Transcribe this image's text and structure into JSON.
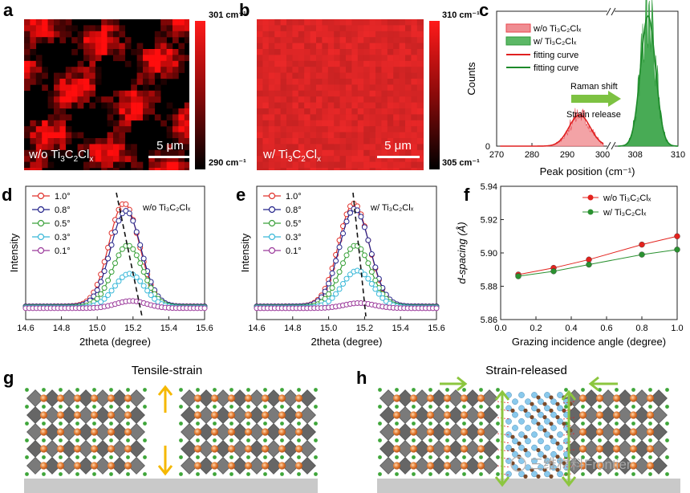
{
  "panels": {
    "a": {
      "letter": "a",
      "label_main": "w/o Ti",
      "s1": "3",
      "c": "C",
      "s2": "2",
      "cl": "Cl",
      "s3": "x",
      "scalebar": "5 μm",
      "colorbar_max": "301 cm⁻¹",
      "colorbar_min": "290 cm⁻¹"
    },
    "b": {
      "letter": "b",
      "label_main": "w/ Ti",
      "s1": "3",
      "c": "C",
      "s2": "2",
      "cl": "Cl",
      "s3": "x",
      "scalebar": "5 μm",
      "colorbar_max": "310 cm⁻¹",
      "colorbar_min": "305 cm⁻¹"
    },
    "c": {
      "letter": "c",
      "legend": [
        {
          "text": "w/o Ti₃C₂Clₓ",
          "color": "#e8464e",
          "kind": "fill"
        },
        {
          "text": "w/  Ti₃C₂Clₓ",
          "color": "#2f9a3b",
          "kind": "fill"
        },
        {
          "text": "fitting curve",
          "color": "#e02020",
          "kind": "line"
        },
        {
          "text": "fitting curve",
          "color": "#1d8a2a",
          "kind": "line"
        }
      ],
      "annotation_top": "Raman shift",
      "annotation_bottom": "Strain release",
      "arrow_color": "#7dc242"
    },
    "d": {
      "letter": "d",
      "label": "w/o Ti₃C₂Clₓ"
    },
    "e": {
      "letter": "e",
      "label": "w/  Ti₃C₂Clₓ"
    },
    "f": {
      "letter": "f"
    },
    "g": {
      "letter": "g",
      "title": "Tensile-strain"
    },
    "h": {
      "letter": "h",
      "title": "Strain-released",
      "watermark": "三维材料Frontier"
    }
  },
  "chart_data": [
    {
      "id": "c",
      "type": "area",
      "xlabel": "Peak position (cm⁻¹)",
      "ylabel": "Counts",
      "xticks": [
        "270",
        "280",
        "290",
        "300",
        "308",
        "310"
      ],
      "yticks": [
        "0"
      ],
      "x_axis_break": true,
      "series": [
        {
          "name": "w/o Ti₃C₂Clₓ",
          "center": 293.5,
          "sigma": 3.0,
          "peak_relative": 0.24,
          "color": "#e8464e"
        },
        {
          "name": "w/  Ti₃C₂Clₓ",
          "center": 308.6,
          "sigma": 0.35,
          "peak_relative": 1.0,
          "color": "#2f9a3b"
        }
      ]
    },
    {
      "id": "d",
      "type": "line",
      "xlabel": "2theta (degree)",
      "ylabel": "Intensity",
      "xlim": [
        14.6,
        15.6
      ],
      "xticks": [
        "14.6",
        "14.8",
        "15.0",
        "15.2",
        "15.4",
        "15.6"
      ],
      "series": [
        {
          "name": "1.0°",
          "center": 15.15,
          "amp": 1.0,
          "color": "#e0302a"
        },
        {
          "name": "0.8°",
          "center": 15.16,
          "amp": 0.93,
          "color": "#23238a"
        },
        {
          "name": "0.5°",
          "center": 15.17,
          "amp": 0.6,
          "color": "#3aa13a"
        },
        {
          "name": "0.3°",
          "center": 15.18,
          "amp": 0.33,
          "color": "#39b8d8"
        },
        {
          "name": "0.1°",
          "center": 15.19,
          "amp": 0.07,
          "color": "#9b3a9b"
        }
      ]
    },
    {
      "id": "e",
      "type": "line",
      "xlabel": "2theta (degree)",
      "ylabel": "Intensity",
      "xlim": [
        14.6,
        15.6
      ],
      "xticks": [
        "14.6",
        "14.8",
        "15.0",
        "15.2",
        "15.4",
        "15.6"
      ],
      "series": [
        {
          "name": "1.0°",
          "center": 15.14,
          "amp": 1.0,
          "color": "#e0302a"
        },
        {
          "name": "0.8°",
          "center": 15.145,
          "amp": 0.95,
          "color": "#23238a"
        },
        {
          "name": "0.5°",
          "center": 15.15,
          "amp": 0.6,
          "color": "#3aa13a"
        },
        {
          "name": "0.3°",
          "center": 15.16,
          "amp": 0.36,
          "color": "#39b8d8"
        },
        {
          "name": "0.1°",
          "center": 15.17,
          "amp": 0.05,
          "color": "#9b3a9b"
        }
      ]
    },
    {
      "id": "f",
      "type": "line",
      "xlabel": "Grazing incidence angle (degree)",
      "ylabel": "d-spacing (Å)",
      "xlim": [
        0.0,
        1.0
      ],
      "ylim": [
        5.86,
        5.94
      ],
      "xticks": [
        "0.0",
        "0.2",
        "0.4",
        "0.6",
        "0.8",
        "1.0"
      ],
      "yticks": [
        "5.86",
        "5.88",
        "5.90",
        "5.92",
        "5.94"
      ],
      "x": [
        0.1,
        0.3,
        0.5,
        0.8,
        1.0
      ],
      "series": [
        {
          "name": "w/o Ti₃C₂Clₓ",
          "values": [
            5.887,
            5.891,
            5.896,
            5.905,
            5.91
          ],
          "color": "#e3231e"
        },
        {
          "name": "w/   Ti₃C₂Clₓ",
          "values": [
            5.886,
            5.889,
            5.893,
            5.899,
            5.902
          ],
          "color": "#2a9130"
        }
      ]
    }
  ]
}
